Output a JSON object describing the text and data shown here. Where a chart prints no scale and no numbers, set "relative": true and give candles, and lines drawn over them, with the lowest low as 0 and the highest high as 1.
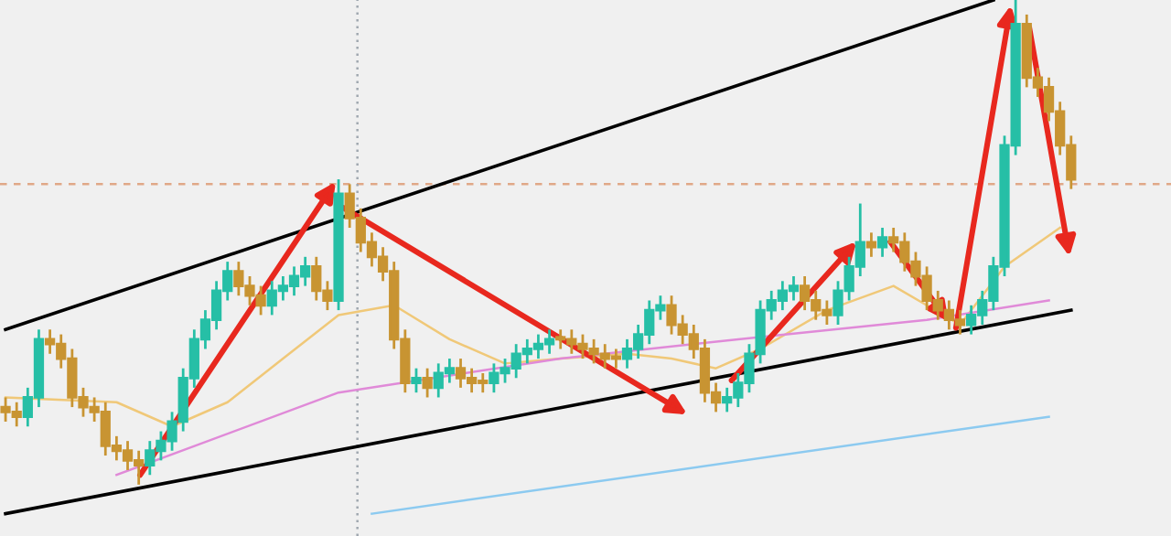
{
  "chart_data": {
    "type": "candlestick",
    "relative": true,
    "grid": false,
    "categories": [
      null,
      null,
      null,
      null,
      null,
      null,
      null,
      null,
      null,
      null,
      null,
      null,
      null,
      null,
      null,
      null,
      null,
      null,
      null,
      null,
      null,
      null,
      null,
      null,
      null,
      null,
      null,
      null,
      null,
      null,
      null,
      null,
      null,
      null,
      null,
      null,
      null,
      null,
      null,
      null,
      null,
      null,
      null,
      null,
      null,
      null,
      null,
      null,
      null,
      null,
      null,
      null,
      null,
      null,
      null,
      null,
      null,
      null,
      null,
      null,
      null,
      null,
      null,
      null,
      null,
      null,
      null,
      null,
      null,
      null,
      null,
      null,
      null,
      null,
      null,
      null,
      null,
      null,
      null,
      null,
      null,
      null,
      null,
      null,
      null,
      null,
      null,
      null,
      null,
      null,
      null,
      null,
      null,
      null,
      null,
      null,
      null
    ],
    "ohlc": [
      [
        0.16,
        0.18,
        0.13,
        0.15
      ],
      [
        0.15,
        0.17,
        0.12,
        0.14
      ],
      [
        0.14,
        0.2,
        0.12,
        0.18
      ],
      [
        0.18,
        0.32,
        0.16,
        0.3
      ],
      [
        0.3,
        0.32,
        0.27,
        0.29
      ],
      [
        0.29,
        0.31,
        0.24,
        0.26
      ],
      [
        0.26,
        0.28,
        0.16,
        0.18
      ],
      [
        0.18,
        0.2,
        0.14,
        0.16
      ],
      [
        0.16,
        0.18,
        0.13,
        0.15
      ],
      [
        0.15,
        0.17,
        0.06,
        0.08
      ],
      [
        0.08,
        0.1,
        0.05,
        0.07
      ],
      [
        0.07,
        0.09,
        0.03,
        0.05
      ],
      [
        0.05,
        0.07,
        0.0,
        0.04
      ],
      [
        0.04,
        0.09,
        0.02,
        0.07
      ],
      [
        0.07,
        0.11,
        0.05,
        0.09
      ],
      [
        0.09,
        0.15,
        0.07,
        0.13
      ],
      [
        0.13,
        0.24,
        0.11,
        0.22
      ],
      [
        0.22,
        0.32,
        0.2,
        0.3
      ],
      [
        0.3,
        0.36,
        0.28,
        0.34
      ],
      [
        0.34,
        0.42,
        0.32,
        0.4
      ],
      [
        0.4,
        0.46,
        0.38,
        0.44
      ],
      [
        0.44,
        0.46,
        0.39,
        0.41
      ],
      [
        0.41,
        0.43,
        0.37,
        0.39
      ],
      [
        0.39,
        0.41,
        0.35,
        0.37
      ],
      [
        0.37,
        0.42,
        0.35,
        0.4
      ],
      [
        0.4,
        0.43,
        0.38,
        0.41
      ],
      [
        0.41,
        0.45,
        0.39,
        0.43
      ],
      [
        0.43,
        0.47,
        0.41,
        0.45
      ],
      [
        0.45,
        0.47,
        0.38,
        0.4
      ],
      [
        0.4,
        0.42,
        0.36,
        0.38
      ],
      [
        0.38,
        0.63,
        0.36,
        0.6
      ],
      [
        0.6,
        0.62,
        0.53,
        0.55
      ],
      [
        0.55,
        0.57,
        0.48,
        0.5
      ],
      [
        0.5,
        0.52,
        0.45,
        0.47
      ],
      [
        0.47,
        0.49,
        0.42,
        0.44
      ],
      [
        0.44,
        0.46,
        0.28,
        0.3
      ],
      [
        0.3,
        0.32,
        0.19,
        0.21
      ],
      [
        0.21,
        0.24,
        0.19,
        0.22
      ],
      [
        0.22,
        0.24,
        0.18,
        0.2
      ],
      [
        0.2,
        0.25,
        0.18,
        0.23
      ],
      [
        0.23,
        0.26,
        0.21,
        0.24
      ],
      [
        0.24,
        0.26,
        0.2,
        0.22
      ],
      [
        0.22,
        0.24,
        0.19,
        0.21
      ],
      [
        0.21,
        0.23,
        0.19,
        0.21
      ],
      [
        0.21,
        0.25,
        0.19,
        0.23
      ],
      [
        0.23,
        0.26,
        0.21,
        0.24
      ],
      [
        0.24,
        0.29,
        0.22,
        0.27
      ],
      [
        0.27,
        0.3,
        0.25,
        0.28
      ],
      [
        0.28,
        0.31,
        0.26,
        0.29
      ],
      [
        0.29,
        0.32,
        0.27,
        0.3
      ],
      [
        0.3,
        0.32,
        0.28,
        0.3
      ],
      [
        0.3,
        0.32,
        0.27,
        0.29
      ],
      [
        0.29,
        0.31,
        0.26,
        0.28
      ],
      [
        0.28,
        0.3,
        0.25,
        0.27
      ],
      [
        0.27,
        0.29,
        0.24,
        0.26
      ],
      [
        0.26,
        0.28,
        0.24,
        0.26
      ],
      [
        0.26,
        0.3,
        0.24,
        0.28
      ],
      [
        0.28,
        0.33,
        0.26,
        0.31
      ],
      [
        0.31,
        0.38,
        0.29,
        0.36
      ],
      [
        0.36,
        0.39,
        0.34,
        0.37
      ],
      [
        0.37,
        0.39,
        0.31,
        0.33
      ],
      [
        0.33,
        0.35,
        0.29,
        0.31
      ],
      [
        0.31,
        0.33,
        0.26,
        0.28
      ],
      [
        0.28,
        0.3,
        0.17,
        0.19
      ],
      [
        0.19,
        0.21,
        0.15,
        0.17
      ],
      [
        0.17,
        0.2,
        0.15,
        0.18
      ],
      [
        0.18,
        0.23,
        0.16,
        0.21
      ],
      [
        0.21,
        0.29,
        0.19,
        0.27
      ],
      [
        0.27,
        0.38,
        0.25,
        0.36
      ],
      [
        0.36,
        0.4,
        0.34,
        0.38
      ],
      [
        0.38,
        0.42,
        0.36,
        0.4
      ],
      [
        0.4,
        0.43,
        0.38,
        0.41
      ],
      [
        0.41,
        0.43,
        0.36,
        0.38
      ],
      [
        0.38,
        0.4,
        0.34,
        0.36
      ],
      [
        0.36,
        0.38,
        0.33,
        0.35
      ],
      [
        0.35,
        0.42,
        0.33,
        0.4
      ],
      [
        0.4,
        0.47,
        0.38,
        0.45
      ],
      [
        0.45,
        0.58,
        0.43,
        0.5
      ],
      [
        0.5,
        0.52,
        0.47,
        0.49
      ],
      [
        0.49,
        0.53,
        0.47,
        0.51
      ],
      [
        0.51,
        0.53,
        0.48,
        0.5
      ],
      [
        0.5,
        0.52,
        0.44,
        0.46
      ],
      [
        0.46,
        0.48,
        0.41,
        0.43
      ],
      [
        0.43,
        0.45,
        0.36,
        0.38
      ],
      [
        0.38,
        0.4,
        0.34,
        0.36
      ],
      [
        0.36,
        0.38,
        0.32,
        0.34
      ],
      [
        0.34,
        0.36,
        0.31,
        0.33
      ],
      [
        0.33,
        0.37,
        0.31,
        0.35
      ],
      [
        0.35,
        0.4,
        0.33,
        0.38
      ],
      [
        0.38,
        0.47,
        0.36,
        0.45
      ],
      [
        0.45,
        0.72,
        0.43,
        0.7
      ],
      [
        0.7,
        1.0,
        0.68,
        0.95
      ],
      [
        0.95,
        0.97,
        0.82,
        0.84
      ],
      [
        0.84,
        0.86,
        0.8,
        0.82
      ],
      [
        0.82,
        0.84,
        0.75,
        0.77
      ],
      [
        0.77,
        0.79,
        0.68,
        0.7
      ],
      [
        0.7,
        0.72,
        0.61,
        0.63
      ]
    ],
    "colors": [
      "#c89432",
      "#c89432",
      "#26bfa6",
      "#26bfa6",
      "#c89432",
      "#c89432",
      "#c89432",
      "#c89432",
      "#c89432",
      "#c89432",
      "#c89432",
      "#c89432",
      "#c89432",
      "#26bfa6",
      "#26bfa6",
      "#26bfa6",
      "#26bfa6",
      "#26bfa6",
      "#26bfa6",
      "#26bfa6",
      "#26bfa6",
      "#c89432",
      "#c89432",
      "#c89432",
      "#26bfa6",
      "#26bfa6",
      "#26bfa6",
      "#26bfa6",
      "#c89432",
      "#c89432",
      "#26bfa6",
      "#c89432",
      "#c89432",
      "#c89432",
      "#c89432",
      "#c89432",
      "#c89432",
      "#26bfa6",
      "#c89432",
      "#26bfa6",
      "#26bfa6",
      "#c89432",
      "#c89432",
      "#c89432",
      "#26bfa6",
      "#26bfa6",
      "#26bfa6",
      "#26bfa6",
      "#26bfa6",
      "#26bfa6",
      "#c89432",
      "#c89432",
      "#c89432",
      "#c89432",
      "#c89432",
      "#c89432",
      "#26bfa6",
      "#26bfa6",
      "#26bfa6",
      "#26bfa6",
      "#c89432",
      "#c89432",
      "#c89432",
      "#c89432",
      "#c89432",
      "#26bfa6",
      "#26bfa6",
      "#26bfa6",
      "#26bfa6",
      "#26bfa6",
      "#26bfa6",
      "#26bfa6",
      "#c89432",
      "#c89432",
      "#c89432",
      "#26bfa6",
      "#26bfa6",
      "#26bfa6",
      "#c89432",
      "#26bfa6",
      "#c89432",
      "#c89432",
      "#c89432",
      "#c89432",
      "#c89432",
      "#c89432",
      "#c89432",
      "#26bfa6",
      "#26bfa6",
      "#26bfa6",
      "#26bfa6",
      "#26bfa6",
      "#c89432",
      "#c89432",
      "#c89432",
      "#c89432",
      "#c89432"
    ],
    "series": [
      {
        "type": "line",
        "color": "#f0c878",
        "values": [
          0.18,
          null,
          null,
          null,
          null,
          null,
          null,
          null,
          null,
          null,
          0.17,
          null,
          null,
          null,
          null,
          0.12,
          null,
          null,
          null,
          null,
          0.17,
          null,
          null,
          null,
          null,
          0.26,
          null,
          null,
          null,
          null,
          0.35,
          null,
          null,
          null,
          null,
          0.37,
          null,
          null,
          null,
          null,
          0.3,
          null,
          null,
          null,
          null,
          0.25,
          null,
          null,
          null,
          null,
          0.26,
          null,
          null,
          null,
          null,
          null,
          0.27,
          null,
          null,
          null,
          0.26,
          null,
          null,
          null,
          0.24,
          null,
          null,
          null,
          0.28,
          null,
          null,
          null,
          null,
          null,
          0.36,
          null,
          null,
          null,
          null,
          null,
          0.41,
          null,
          null,
          null,
          null,
          null,
          0.33,
          null,
          null,
          null,
          0.45,
          null,
          null,
          null,
          null,
          0.53,
          null
        ]
      },
      {
        "type": "line",
        "color": "#e08ad8",
        "values": [
          null,
          null,
          null,
          null,
          null,
          null,
          null,
          null,
          null,
          null,
          0.02,
          null,
          null,
          null,
          null,
          null,
          null,
          null,
          null,
          null,
          null,
          null,
          null,
          null,
          null,
          null,
          null,
          null,
          null,
          null,
          0.19,
          null,
          null,
          null,
          null,
          null,
          null,
          null,
          null,
          null,
          null,
          null,
          null,
          null,
          null,
          null,
          null,
          null,
          null,
          null,
          0.26,
          null,
          null,
          null,
          null,
          null,
          null,
          null,
          null,
          null,
          null,
          null,
          null,
          null,
          null,
          null,
          0.3,
          null,
          null,
          null,
          null,
          null,
          null,
          null,
          null,
          null,
          null,
          null,
          null,
          null,
          null,
          null,
          null,
          0.34,
          null,
          null,
          null,
          null,
          null,
          null,
          null,
          null,
          null,
          null,
          0.38,
          null,
          null
        ]
      },
      {
        "type": "line",
        "color": "#8ccaf0",
        "values": [
          null,
          null,
          null,
          null,
          null,
          null,
          null,
          null,
          null,
          null,
          null,
          null,
          null,
          null,
          null,
          null,
          null,
          null,
          null,
          null,
          null,
          null,
          null,
          null,
          null,
          null,
          null,
          null,
          null,
          null,
          null,
          null,
          null,
          -0.06,
          null,
          null,
          null,
          null,
          null,
          null,
          null,
          null,
          null,
          null,
          null,
          null,
          null,
          null,
          null,
          null,
          null,
          null,
          null,
          null,
          null,
          null,
          null,
          null,
          null,
          null,
          null,
          null,
          null,
          null,
          null,
          null,
          null,
          null,
          null,
          null,
          null,
          null,
          null,
          null,
          null,
          null,
          null,
          null,
          null,
          null,
          null,
          null,
          null,
          null,
          null,
          null,
          null,
          null,
          null,
          null,
          null,
          null,
          null,
          null,
          0.14,
          null,
          null
        ]
      },
      {
        "type": "line",
        "color": "#000000",
        "values": [
          0.32,
          null,
          null,
          null,
          null,
          null,
          null,
          null,
          null,
          null,
          null,
          null,
          null,
          null,
          null,
          null,
          null,
          null,
          null,
          null,
          null,
          null,
          null,
          null,
          null,
          null,
          null,
          null,
          null,
          null,
          null,
          null,
          null,
          null,
          null,
          null,
          null,
          null,
          null,
          null,
          null,
          null,
          null,
          null,
          null,
          null,
          null,
          null,
          null,
          null,
          null,
          null,
          null,
          null,
          null,
          null,
          null,
          null,
          null,
          null,
          null,
          null,
          null,
          null,
          null,
          null,
          null,
          null,
          null,
          null,
          null,
          null,
          null,
          null,
          null,
          null,
          null,
          null,
          null,
          null,
          null,
          null,
          null,
          null,
          null,
          null,
          null,
          null,
          null,
          1.0,
          null,
          null,
          null,
          null,
          null,
          null,
          null
        ]
      },
      {
        "type": "line",
        "color": "#000000",
        "values": [
          -0.06,
          null,
          null,
          null,
          null,
          null,
          null,
          null,
          null,
          null,
          null,
          null,
          null,
          null,
          null,
          null,
          null,
          null,
          null,
          null,
          null,
          null,
          null,
          null,
          null,
          null,
          null,
          null,
          null,
          null,
          null,
          null,
          null,
          null,
          null,
          null,
          null,
          null,
          null,
          null,
          null,
          null,
          null,
          null,
          null,
          null,
          null,
          null,
          null,
          null,
          null,
          null,
          null,
          null,
          null,
          null,
          null,
          null,
          null,
          null,
          null,
          null,
          null,
          null,
          null,
          null,
          null,
          null,
          null,
          null,
          null,
          null,
          null,
          null,
          null,
          null,
          null,
          null,
          null,
          null,
          null,
          null,
          null,
          null,
          null,
          null,
          null,
          null,
          null,
          null,
          null,
          null,
          null,
          null,
          null,
          null,
          0.36
        ]
      }
    ],
    "ref_lines": [
      {
        "axis": "y",
        "value": 0.62,
        "color": "#e0a888",
        "line_style": "dashed"
      }
    ]
  }
}
